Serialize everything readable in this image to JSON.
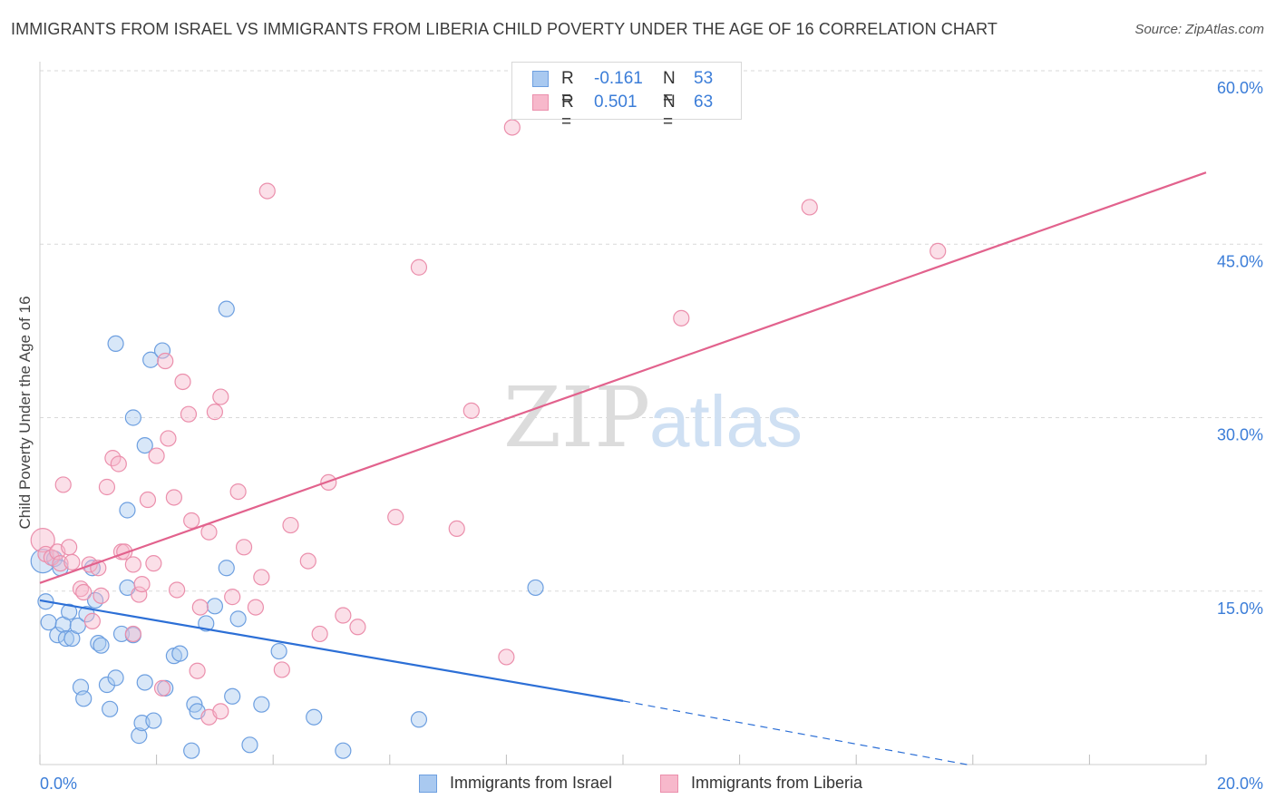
{
  "title": "IMMIGRANTS FROM ISRAEL VS IMMIGRANTS FROM LIBERIA CHILD POVERTY UNDER THE AGE OF 16 CORRELATION CHART",
  "source": "Source: ZipAtlas.com",
  "watermark": {
    "zip": "ZIP",
    "atlas": "atlas"
  },
  "legend_stats": [
    {
      "r_label": "R =",
      "r_value": "-0.161",
      "n_label": "N =",
      "n_value": "53",
      "color": "#9fc3ee"
    },
    {
      "r_label": "R =",
      "r_value": "0.501",
      "n_label": "N =",
      "n_value": "63",
      "color": "#f4a9c0"
    }
  ],
  "colors": {
    "israel_fill": "#a9c9f0",
    "israel_stroke": "#6d9fe0",
    "israel_line": "#2c6fd6",
    "liberia_fill": "#f7b8cb",
    "liberia_stroke": "#eb8fac",
    "liberia_line": "#e2628d",
    "tick_label": "#3b7dd8",
    "grid": "#d9d9d9"
  },
  "chart_data": {
    "type": "scatter",
    "title": "IMMIGRANTS FROM ISRAEL VS IMMIGRANTS FROM LIBERIA CHILD POVERTY UNDER THE AGE OF 16 CORRELATION CHART",
    "xlabel": "",
    "ylabel": "Child Poverty Under the Age of 16",
    "xlim": [
      0,
      20
    ],
    "ylim": [
      0,
      60
    ],
    "x_tick_labels": [
      {
        "value": 0,
        "label": "0.0%"
      },
      {
        "value": 20,
        "label": "20.0%"
      }
    ],
    "y_tick_labels": [
      {
        "value": 15,
        "label": "15.0%"
      },
      {
        "value": 30,
        "label": "30.0%"
      },
      {
        "value": 45,
        "label": "45.0%"
      },
      {
        "value": 60,
        "label": "60.0%"
      }
    ],
    "grid": true,
    "legend_position": "bottom",
    "series": [
      {
        "name": "Immigrants from Israel",
        "r": -0.161,
        "n": 53,
        "trend": {
          "x0": 0,
          "y0": 14.2,
          "x1": 10.0,
          "y1": 5.5,
          "dash_to_x": 15.9,
          "dash_to_y": 0.0
        },
        "points": [
          [
            0.05,
            17.6
          ],
          [
            0.1,
            14.1
          ],
          [
            0.15,
            12.3
          ],
          [
            0.25,
            17.8
          ],
          [
            0.3,
            11.2
          ],
          [
            0.35,
            17.0
          ],
          [
            0.4,
            12.1
          ],
          [
            0.45,
            10.9
          ],
          [
            0.5,
            13.2
          ],
          [
            0.55,
            10.9
          ],
          [
            0.65,
            12.0
          ],
          [
            0.7,
            6.7
          ],
          [
            0.75,
            5.7
          ],
          [
            0.8,
            13.0
          ],
          [
            0.9,
            17.0
          ],
          [
            0.95,
            14.2
          ],
          [
            1.0,
            10.5
          ],
          [
            1.05,
            10.3
          ],
          [
            1.15,
            6.9
          ],
          [
            1.2,
            4.8
          ],
          [
            1.3,
            7.5
          ],
          [
            1.3,
            36.4
          ],
          [
            1.4,
            11.3
          ],
          [
            1.5,
            22.0
          ],
          [
            1.5,
            15.3
          ],
          [
            1.6,
            30.0
          ],
          [
            1.6,
            11.2
          ],
          [
            1.7,
            2.5
          ],
          [
            1.75,
            3.6
          ],
          [
            1.8,
            7.1
          ],
          [
            1.8,
            27.6
          ],
          [
            1.9,
            35.0
          ],
          [
            1.95,
            3.8
          ],
          [
            2.1,
            35.8
          ],
          [
            2.15,
            6.6
          ],
          [
            2.3,
            9.4
          ],
          [
            2.4,
            9.6
          ],
          [
            2.6,
            1.2
          ],
          [
            2.65,
            5.2
          ],
          [
            2.7,
            4.6
          ],
          [
            2.85,
            12.2
          ],
          [
            3.0,
            13.7
          ],
          [
            3.2,
            17.0
          ],
          [
            3.2,
            39.4
          ],
          [
            3.3,
            5.9
          ],
          [
            3.4,
            12.6
          ],
          [
            3.6,
            1.7
          ],
          [
            3.8,
            5.2
          ],
          [
            4.1,
            9.8
          ],
          [
            4.7,
            4.1
          ],
          [
            5.2,
            1.2
          ],
          [
            6.5,
            3.9
          ],
          [
            8.5,
            15.3
          ]
        ]
      },
      {
        "name": "Immigrants from Liberia",
        "r": 0.501,
        "n": 63,
        "trend": {
          "x0": 0,
          "y0": 15.7,
          "x1": 20.0,
          "y1": 51.2
        },
        "points": [
          [
            0.05,
            19.4
          ],
          [
            0.1,
            18.2
          ],
          [
            0.2,
            17.9
          ],
          [
            0.3,
            18.4
          ],
          [
            0.35,
            17.4
          ],
          [
            0.4,
            24.2
          ],
          [
            0.5,
            18.8
          ],
          [
            0.55,
            17.5
          ],
          [
            0.7,
            15.2
          ],
          [
            0.75,
            14.9
          ],
          [
            0.85,
            17.3
          ],
          [
            0.9,
            12.4
          ],
          [
            1.0,
            17.0
          ],
          [
            1.05,
            14.6
          ],
          [
            1.15,
            24.0
          ],
          [
            1.25,
            26.5
          ],
          [
            1.35,
            26.0
          ],
          [
            1.4,
            18.4
          ],
          [
            1.45,
            18.4
          ],
          [
            1.6,
            11.3
          ],
          [
            1.6,
            17.3
          ],
          [
            1.7,
            14.7
          ],
          [
            1.75,
            15.6
          ],
          [
            1.85,
            22.9
          ],
          [
            1.95,
            17.4
          ],
          [
            2.0,
            26.7
          ],
          [
            2.1,
            6.6
          ],
          [
            2.15,
            34.9
          ],
          [
            2.2,
            28.2
          ],
          [
            2.3,
            23.1
          ],
          [
            2.35,
            15.1
          ],
          [
            2.45,
            33.1
          ],
          [
            2.55,
            30.3
          ],
          [
            2.6,
            21.1
          ],
          [
            2.7,
            8.1
          ],
          [
            2.75,
            13.6
          ],
          [
            2.9,
            4.1
          ],
          [
            2.9,
            20.1
          ],
          [
            3.0,
            30.5
          ],
          [
            3.1,
            4.6
          ],
          [
            3.1,
            31.8
          ],
          [
            3.3,
            14.5
          ],
          [
            3.4,
            23.6
          ],
          [
            3.5,
            18.8
          ],
          [
            3.7,
            13.6
          ],
          [
            3.8,
            16.2
          ],
          [
            3.9,
            49.6
          ],
          [
            4.15,
            8.2
          ],
          [
            4.3,
            20.7
          ],
          [
            4.6,
            17.6
          ],
          [
            4.8,
            11.3
          ],
          [
            4.95,
            24.4
          ],
          [
            5.2,
            12.9
          ],
          [
            5.45,
            11.9
          ],
          [
            6.1,
            21.4
          ],
          [
            6.5,
            43.0
          ],
          [
            7.15,
            20.4
          ],
          [
            7.4,
            30.6
          ],
          [
            8.0,
            9.3
          ],
          [
            8.1,
            55.1
          ],
          [
            11.0,
            38.6
          ],
          [
            13.2,
            48.2
          ],
          [
            15.4,
            44.4
          ]
        ]
      }
    ]
  }
}
